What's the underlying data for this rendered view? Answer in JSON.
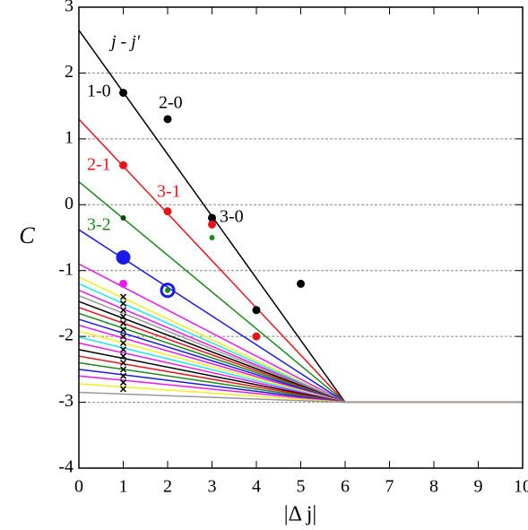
{
  "chart_data": {
    "type": "line",
    "xlabel": "|Δ j|",
    "ylabel": "C",
    "xlim": [
      0,
      10
    ],
    "ylim": [
      -4,
      3
    ],
    "xticks": [
      0,
      1,
      2,
      3,
      4,
      5,
      6,
      7,
      8,
      9,
      10
    ],
    "yticks": [
      -4,
      -3,
      -2,
      -1,
      0,
      1,
      2,
      3
    ],
    "grid_lines": [
      2,
      1,
      0,
      -1,
      -2,
      -3
    ],
    "x": [
      0,
      6,
      10
    ],
    "series": [
      {
        "color": "#000000",
        "values": [
          2.65,
          -3,
          -3
        ]
      },
      {
        "color": "#e8141c",
        "values": [
          1.3,
          -3,
          -3
        ]
      },
      {
        "color": "#1a8a1a",
        "values": [
          0.35,
          -3,
          -3
        ]
      },
      {
        "color": "#1a1ae8",
        "values": [
          -0.38,
          -3,
          -3
        ]
      },
      {
        "color": "#e81ae8",
        "values": [
          -0.9,
          -3,
          -3
        ]
      },
      {
        "color": "#f0f020",
        "values": [
          -1.1,
          -3,
          -3
        ]
      },
      {
        "color": "#20e8e8",
        "values": [
          -1.2,
          -3,
          -3
        ]
      },
      {
        "color": "#e81ae8",
        "values": [
          -1.3,
          -3,
          -3
        ]
      },
      {
        "color": "#999999",
        "values": [
          -1.38,
          -3,
          -3
        ]
      },
      {
        "color": "#000000",
        "values": [
          -1.47,
          -3,
          -3
        ]
      },
      {
        "color": "#e8141c",
        "values": [
          -1.56,
          -3,
          -3
        ]
      },
      {
        "color": "#1a8a1a",
        "values": [
          -1.65,
          -3,
          -3
        ]
      },
      {
        "color": "#1a1ae8",
        "values": [
          -1.74,
          -3,
          -3
        ]
      },
      {
        "color": "#e81ae8",
        "values": [
          -1.83,
          -3,
          -3
        ]
      },
      {
        "color": "#f0f020",
        "values": [
          -1.92,
          -3,
          -3
        ]
      },
      {
        "color": "#20e8e8",
        "values": [
          -2.01,
          -3,
          -3
        ]
      },
      {
        "color": "#e81ae8",
        "values": [
          -2.1,
          -3,
          -3
        ]
      },
      {
        "color": "#000000",
        "values": [
          -2.2,
          -3,
          -3
        ]
      },
      {
        "color": "#e8141c",
        "values": [
          -2.3,
          -3,
          -3
        ]
      },
      {
        "color": "#1a8a1a",
        "values": [
          -2.4,
          -3,
          -3
        ]
      },
      {
        "color": "#1a1ae8",
        "values": [
          -2.5,
          -3,
          -3
        ]
      },
      {
        "color": "#e81ae8",
        "values": [
          -2.6,
          -3,
          -3
        ]
      },
      {
        "color": "#f0f020",
        "values": [
          -2.72,
          -3,
          -3
        ]
      },
      {
        "color": "#999999",
        "values": [
          -2.85,
          -3,
          -3
        ]
      }
    ],
    "points": [
      {
        "color": "#000000",
        "marker": "dot",
        "x": [
          1,
          2,
          3,
          4,
          5
        ],
        "y": [
          1.7,
          1.3,
          -0.2,
          -1.6,
          -1.2
        ]
      },
      {
        "color": "#e8141c",
        "marker": "dot",
        "x": [
          1,
          2,
          3,
          4
        ],
        "y": [
          0.6,
          -0.1,
          -0.3,
          -2.0
        ]
      },
      {
        "color": "#0a4a0a",
        "marker": "small-dot",
        "x": [
          1
        ],
        "y": [
          -0.2
        ]
      },
      {
        "color": "#1a8a1a",
        "marker": "small-dot",
        "x": [
          3,
          2
        ],
        "y": [
          -0.5,
          -1.3
        ]
      },
      {
        "color": "#1a1ae8",
        "marker": "big-dot",
        "x": [
          1
        ],
        "y": [
          -0.8
        ]
      },
      {
        "color": "#1a1ae8",
        "marker": "ring",
        "x": [
          2
        ],
        "y": [
          -1.3
        ]
      },
      {
        "color": "#e81ae8",
        "marker": "dot",
        "x": [
          1
        ],
        "y": [
          -1.2
        ]
      },
      {
        "color": "#000000",
        "marker": "x",
        "x": [
          1,
          1,
          1,
          1,
          1,
          1,
          1,
          1,
          1,
          1,
          1,
          1,
          1,
          1,
          1
        ],
        "y": [
          -1.4,
          -1.5,
          -1.6,
          -1.7,
          -1.8,
          -1.9,
          -2.0,
          -2.1,
          -2.2,
          -2.3,
          -2.4,
          -2.5,
          -2.6,
          -2.7,
          -2.8
        ]
      }
    ],
    "legend_title": "j - j′",
    "annotations": [
      {
        "text": "1-0",
        "color": "#000000"
      },
      {
        "text": "2-0",
        "color": "#000000"
      },
      {
        "text": "2-1",
        "color": "#e8141c"
      },
      {
        "text": "3-1",
        "color": "#e8141c"
      },
      {
        "text": "3-0",
        "color": "#000000"
      },
      {
        "text": "3-2",
        "color": "#1a8a1a"
      }
    ]
  }
}
